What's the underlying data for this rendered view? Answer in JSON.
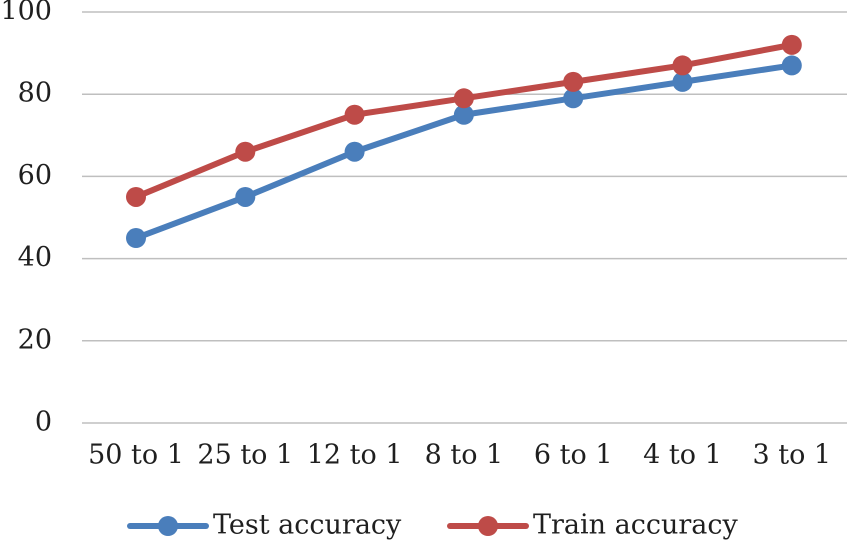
{
  "chart_data": {
    "type": "line",
    "title": "",
    "xlabel": "",
    "ylabel": "",
    "categories": [
      "50 to 1",
      "25 to 1",
      "12 to 1",
      "8 to 1",
      "6 to 1",
      "4 to 1",
      "3 to 1"
    ],
    "ylim": [
      0,
      100
    ],
    "yticks": [
      0,
      20,
      40,
      60,
      80,
      100
    ],
    "grid": true,
    "legend_position": "bottom",
    "series": [
      {
        "name": "Test accuracy",
        "color": "#4a7ebb",
        "values": [
          45,
          55,
          66,
          75,
          79,
          83,
          87
        ]
      },
      {
        "name": "Train accuracy",
        "color": "#be4b48",
        "values": [
          55,
          66,
          75,
          79,
          83,
          87,
          92
        ]
      }
    ]
  }
}
